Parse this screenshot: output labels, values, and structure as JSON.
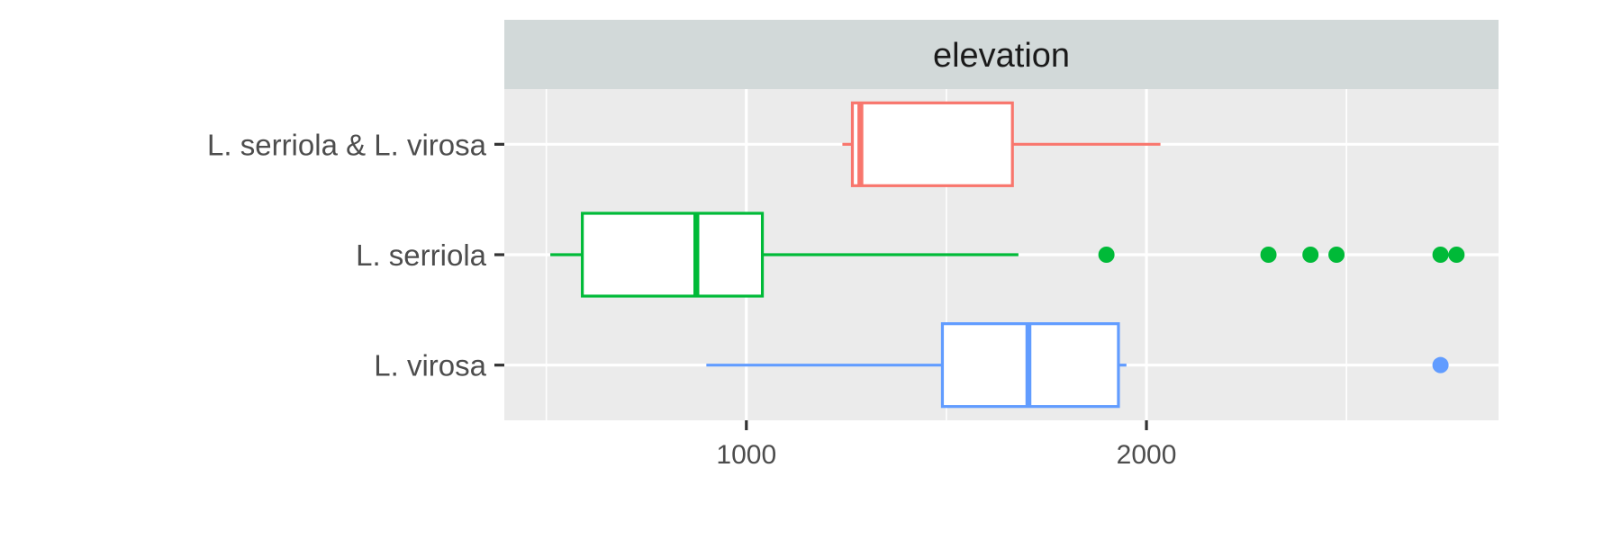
{
  "chart_data": {
    "type": "boxplot",
    "orientation": "horizontal",
    "facet_label": "elevation",
    "xlim": [
      395,
      2880
    ],
    "x_ticks": [
      1000,
      2000
    ],
    "x_minor_ticks": [
      500,
      1500,
      2500
    ],
    "grid": true,
    "legend": "none",
    "categories": [
      "L. serriola & L. virosa",
      "L. serriola",
      "L. virosa"
    ],
    "series": [
      {
        "category": "L. serriola & L. virosa",
        "color": "#F8766D",
        "whisker_low": 1240,
        "q1": 1265,
        "median": 1285,
        "q3": 1665,
        "whisker_high": 2035,
        "outliers": []
      },
      {
        "category": "L. serriola",
        "color": "#00BA38",
        "whisker_low": 510,
        "q1": 590,
        "median": 875,
        "q3": 1040,
        "whisker_high": 1680,
        "outliers": [
          1900,
          2305,
          2410,
          2475,
          2735,
          2775
        ]
      },
      {
        "category": "L. virosa",
        "color": "#619CFF",
        "whisker_low": 900,
        "q1": 1490,
        "median": 1705,
        "q3": 1930,
        "whisker_high": 1950,
        "outliers": [
          2735
        ]
      }
    ]
  }
}
